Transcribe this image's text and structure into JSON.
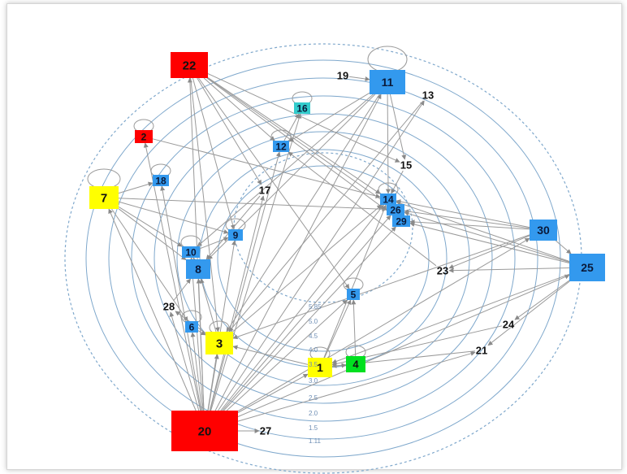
{
  "colors": {
    "red": "#ff0000",
    "yellow": "#ffff00",
    "green": "#00e020",
    "blue": "#3399ee",
    "cyan": "#33cccc",
    "ring": "#7fa8cc",
    "edge": "#9a9a9a"
  },
  "nodes": [
    {
      "id": "20",
      "color": "red",
      "shape": "box"
    },
    {
      "id": "22",
      "color": "red",
      "shape": "box"
    },
    {
      "id": "2",
      "color": "red",
      "shape": "box"
    },
    {
      "id": "7",
      "color": "yellow",
      "shape": "box"
    },
    {
      "id": "3",
      "color": "yellow",
      "shape": "box"
    },
    {
      "id": "1",
      "color": "yellow",
      "shape": "box"
    },
    {
      "id": "4",
      "color": "green",
      "shape": "box"
    },
    {
      "id": "11",
      "color": "blue",
      "shape": "box"
    },
    {
      "id": "30",
      "color": "blue",
      "shape": "box"
    },
    {
      "id": "25",
      "color": "blue",
      "shape": "box"
    },
    {
      "id": "8",
      "color": "blue",
      "shape": "box"
    },
    {
      "id": "10",
      "color": "blue",
      "shape": "box"
    },
    {
      "id": "9",
      "color": "blue",
      "shape": "box"
    },
    {
      "id": "12",
      "color": "blue",
      "shape": "box"
    },
    {
      "id": "18",
      "color": "blue",
      "shape": "box"
    },
    {
      "id": "6",
      "color": "blue",
      "shape": "box"
    },
    {
      "id": "5",
      "color": "blue",
      "shape": "box"
    },
    {
      "id": "14",
      "color": "blue",
      "shape": "box"
    },
    {
      "id": "26",
      "color": "blue",
      "shape": "box"
    },
    {
      "id": "29",
      "color": "blue",
      "shape": "box"
    },
    {
      "id": "16",
      "color": "cyan",
      "shape": "box"
    },
    {
      "id": "19",
      "color": "none",
      "shape": "text"
    },
    {
      "id": "13",
      "color": "none",
      "shape": "text"
    },
    {
      "id": "15",
      "color": "none",
      "shape": "text"
    },
    {
      "id": "17",
      "color": "none",
      "shape": "text"
    },
    {
      "id": "23",
      "color": "none",
      "shape": "text"
    },
    {
      "id": "24",
      "color": "none",
      "shape": "text"
    },
    {
      "id": "21",
      "color": "none",
      "shape": "text"
    },
    {
      "id": "28",
      "color": "none",
      "shape": "text"
    },
    {
      "id": "27",
      "color": "none",
      "shape": "text"
    }
  ],
  "self_loops": [
    "11",
    "2",
    "7",
    "16",
    "12",
    "18",
    "10",
    "9",
    "6",
    "3",
    "1",
    "4",
    "5",
    "14"
  ],
  "edges": [
    [
      "20",
      "22"
    ],
    [
      "20",
      "2"
    ],
    [
      "20",
      "18"
    ],
    [
      "20",
      "7"
    ],
    [
      "20",
      "8"
    ],
    [
      "20",
      "10"
    ],
    [
      "20",
      "9"
    ],
    [
      "20",
      "12"
    ],
    [
      "20",
      "16"
    ],
    [
      "20",
      "17"
    ],
    [
      "20",
      "11"
    ],
    [
      "20",
      "13"
    ],
    [
      "20",
      "14"
    ],
    [
      "20",
      "26"
    ],
    [
      "20",
      "29"
    ],
    [
      "20",
      "30"
    ],
    [
      "20",
      "25"
    ],
    [
      "20",
      "1"
    ],
    [
      "20",
      "5"
    ],
    [
      "20",
      "3"
    ],
    [
      "20",
      "6"
    ],
    [
      "20",
      "27"
    ],
    [
      "20",
      "21"
    ],
    [
      "20",
      "28"
    ],
    [
      "22",
      "9"
    ],
    [
      "22",
      "12"
    ],
    [
      "22",
      "14"
    ],
    [
      "22",
      "26"
    ],
    [
      "22",
      "29"
    ],
    [
      "22",
      "5"
    ],
    [
      "22",
      "15"
    ],
    [
      "22",
      "17"
    ],
    [
      "22",
      "3"
    ],
    [
      "2",
      "14"
    ],
    [
      "7",
      "18"
    ],
    [
      "7",
      "8"
    ],
    [
      "7",
      "9"
    ],
    [
      "7",
      "10"
    ],
    [
      "7",
      "26"
    ],
    [
      "7",
      "6"
    ],
    [
      "11",
      "14"
    ],
    [
      "11",
      "15"
    ],
    [
      "11",
      "12"
    ],
    [
      "11",
      "10"
    ],
    [
      "11",
      "8"
    ],
    [
      "11",
      "3"
    ],
    [
      "19",
      "11"
    ],
    [
      "13",
      "3"
    ],
    [
      "30",
      "14"
    ],
    [
      "30",
      "26"
    ],
    [
      "30",
      "29"
    ],
    [
      "30",
      "23"
    ],
    [
      "30",
      "3"
    ],
    [
      "30",
      "25"
    ],
    [
      "25",
      "14"
    ],
    [
      "25",
      "26"
    ],
    [
      "25",
      "29"
    ],
    [
      "25",
      "23"
    ],
    [
      "25",
      "1"
    ],
    [
      "25",
      "24"
    ],
    [
      "25",
      "21"
    ],
    [
      "23",
      "12"
    ],
    [
      "24",
      "1"
    ],
    [
      "21",
      "1"
    ],
    [
      "1",
      "3"
    ],
    [
      "1",
      "4"
    ],
    [
      "1",
      "5"
    ],
    [
      "1",
      "14"
    ],
    [
      "3",
      "14"
    ],
    [
      "3",
      "8"
    ],
    [
      "3",
      "28"
    ],
    [
      "28",
      "8"
    ],
    [
      "4",
      "5"
    ],
    [
      "8",
      "10"
    ],
    [
      "10",
      "9"
    ],
    [
      "6",
      "3"
    ],
    [
      "17",
      "8"
    ],
    [
      "12",
      "16"
    ],
    [
      "15",
      "14"
    ]
  ],
  "ring_scale": [
    "5.85",
    "5.0",
    "4.5",
    "4.0",
    "3.5",
    "3.0",
    "2.5",
    "2.0",
    "1.5",
    "1.11"
  ]
}
